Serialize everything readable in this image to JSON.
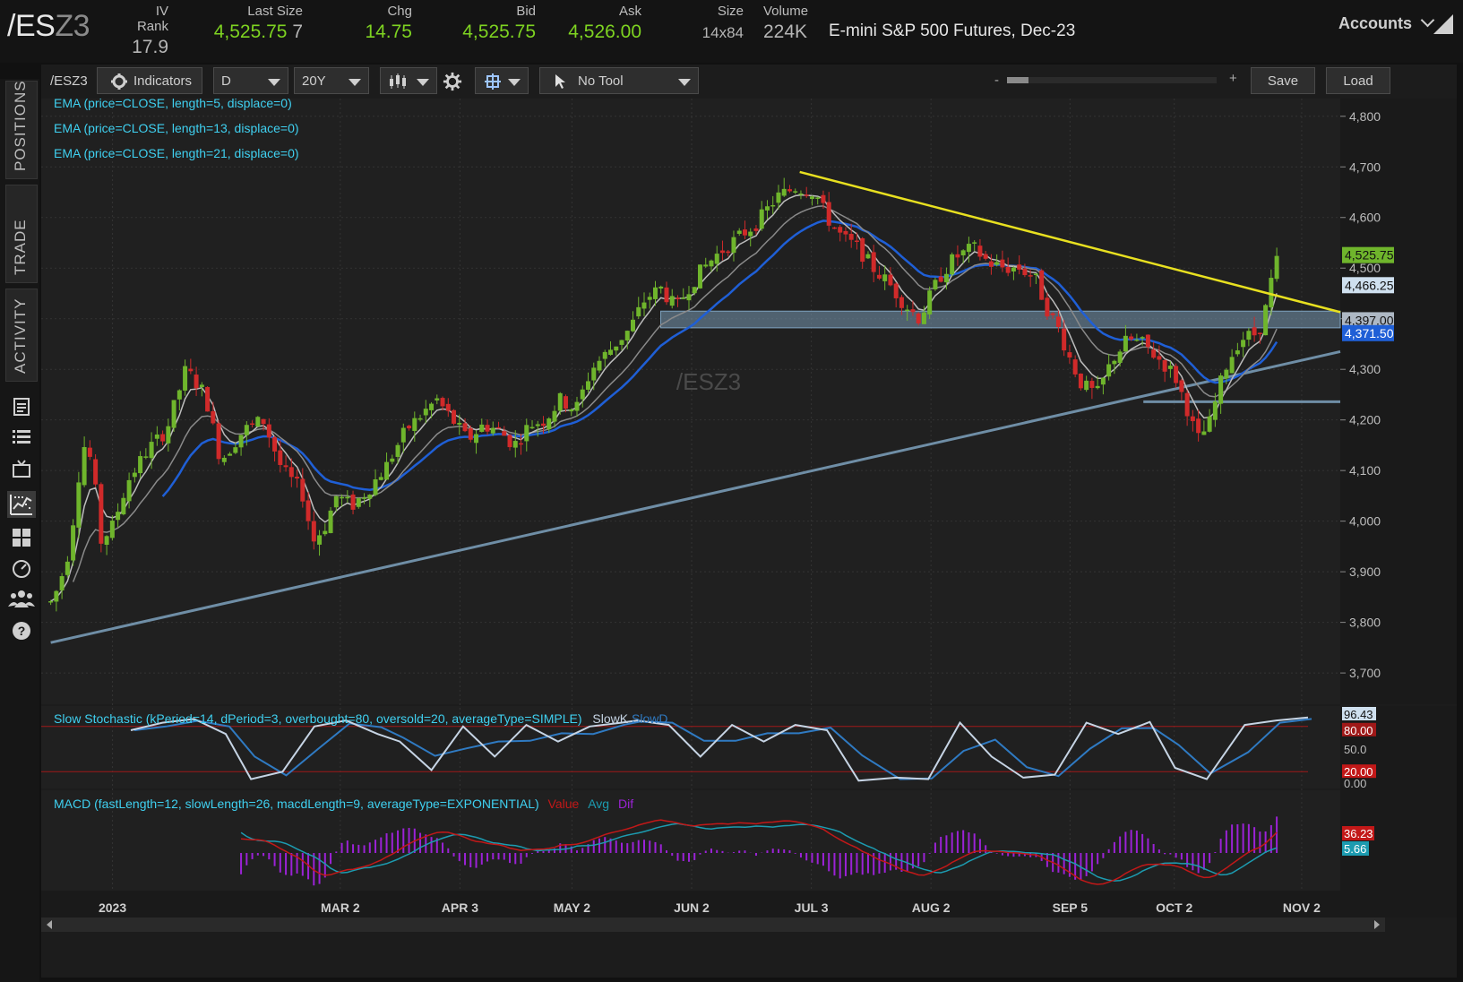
{
  "header": {
    "symbol_main": "/ES",
    "symbol_dim": "Z3",
    "quotes": [
      {
        "label": "IV Rank",
        "value": "17.9",
        "tone": "gray"
      },
      {
        "label": "Last Size",
        "value": "4,525.75",
        "extra": "7",
        "tone": "green"
      },
      {
        "label": "Chg",
        "value": "14.75",
        "tone": "green"
      },
      {
        "label": "Bid",
        "value": "4,525.75",
        "tone": "green"
      },
      {
        "label": "Ask",
        "value": "4,526.00",
        "tone": "green"
      },
      {
        "label": "Size",
        "value": "14x84",
        "tone": "gray"
      },
      {
        "label": "Volume",
        "value": "224K",
        "tone": "gray"
      }
    ],
    "description": "E-mini S&P 500 Futures, Dec-23",
    "accounts_label": "Accounts"
  },
  "left_tabs": [
    "POSITIONS",
    "TRADE",
    "ACTIVITY"
  ],
  "left_icons": [
    "document-icon",
    "list-icon",
    "tv-icon",
    "chart-icon",
    "grid-icon",
    "speedometer-icon",
    "people-icon",
    "help-icon"
  ],
  "toolbar": {
    "symbol": "/ESZ3",
    "indicators_label": "Indicators",
    "aggregation": "D",
    "timeframe": "20Y",
    "style_icon": "candles-icon",
    "settings_icon": "gear-icon",
    "drawing_icon": "drawing-set-icon",
    "tool": "No Tool",
    "zoom_minus": "-",
    "zoom_plus": "+",
    "save_label": "Save",
    "load_label": "Load"
  },
  "studies": {
    "ema5": "EMA (price=CLOSE, length=5, displace=0)",
    "ema13": "EMA (price=CLOSE, length=13, displace=0)",
    "ema21": "EMA (price=CLOSE, length=21, displace=0)",
    "stoch_label": "Slow Stochastic (kPeriod=14, dPeriod=3, overbought=80, oversold=20, averageType=SIMPLE)",
    "stoch_k": "SlowK",
    "stoch_d": "SlowD",
    "macd_label": "MACD (fastLength=12, slowLength=26, macdLength=9, averageType=EXPONENTIAL)",
    "macd_value": "Value",
    "macd_avg": "Avg",
    "macd_dif": "Dif"
  },
  "watermark": "/ESZ3",
  "colors": {
    "up": "#6fb52c",
    "down": "#d02a2a",
    "ema5": "#bcbcbc",
    "ema13": "#8a8a8a",
    "ema21": "#1f5fd6",
    "resistance": "#e8e020",
    "support": "#6f8ea6",
    "zone": "#7fa3c0",
    "stoch_k": "#c6d4e4",
    "stoch_d": "#2f7ac2",
    "macd_value": "#c21818",
    "macd_avg": "#1c9bb0",
    "macd_dif": "#9b22d6"
  },
  "chart_data": {
    "type": "candlestick",
    "instrument": "/ESZ3",
    "interval": "D",
    "y_ticks": [
      3700,
      3800,
      3900,
      4000,
      4100,
      4200,
      4300,
      4400,
      4500,
      4600,
      4700,
      4800
    ],
    "ylim": [
      3640,
      4835
    ],
    "x_labels": [
      "2023",
      "MAR 2",
      "APR 3",
      "MAY 2",
      "JUN 2",
      "JUL 3",
      "AUG 2",
      "SEP 5",
      "OCT 2",
      "NOV 2"
    ],
    "x_label_days": [
      8,
      67,
      98,
      127,
      158,
      189,
      220,
      256,
      283,
      316
    ],
    "xlim_days": [
      -10,
      326
    ],
    "path_points": [
      [
        -8,
        3840
      ],
      [
        -6,
        3870
      ],
      [
        -3,
        3950
      ],
      [
        -1,
        4080
      ],
      [
        1,
        4160
      ],
      [
        3,
        4100
      ],
      [
        5,
        3960
      ],
      [
        8,
        3990
      ],
      [
        12,
        4080
      ],
      [
        17,
        4140
      ],
      [
        22,
        4180
      ],
      [
        27,
        4300
      ],
      [
        32,
        4250
      ],
      [
        36,
        4120
      ],
      [
        42,
        4180
      ],
      [
        47,
        4200
      ],
      [
        52,
        4100
      ],
      [
        57,
        4060
      ],
      [
        60,
        3960
      ],
      [
        63,
        3990
      ],
      [
        66,
        4050
      ],
      [
        70,
        4030
      ],
      [
        74,
        4060
      ],
      [
        79,
        4110
      ],
      [
        84,
        4180
      ],
      [
        88,
        4210
      ],
      [
        92,
        4240
      ],
      [
        96,
        4200
      ],
      [
        100,
        4160
      ],
      [
        104,
        4190
      ],
      [
        108,
        4180
      ],
      [
        112,
        4150
      ],
      [
        116,
        4190
      ],
      [
        120,
        4200
      ],
      [
        124,
        4240
      ],
      [
        128,
        4220
      ],
      [
        132,
        4300
      ],
      [
        137,
        4340
      ],
      [
        142,
        4380
      ],
      [
        146,
        4440
      ],
      [
        150,
        4460
      ],
      [
        154,
        4420
      ],
      [
        157,
        4460
      ],
      [
        161,
        4500
      ],
      [
        165,
        4530
      ],
      [
        170,
        4560
      ],
      [
        175,
        4590
      ],
      [
        180,
        4640
      ],
      [
        185,
        4660
      ],
      [
        190,
        4650
      ],
      [
        193,
        4600
      ],
      [
        197,
        4560
      ],
      [
        201,
        4540
      ],
      [
        205,
        4500
      ],
      [
        209,
        4470
      ],
      [
        213,
        4430
      ],
      [
        217,
        4400
      ],
      [
        222,
        4480
      ],
      [
        226,
        4520
      ],
      [
        231,
        4540
      ],
      [
        235,
        4510
      ],
      [
        239,
        4500
      ],
      [
        243,
        4500
      ],
      [
        247,
        4480
      ],
      [
        250,
        4420
      ],
      [
        253,
        4380
      ],
      [
        256,
        4320
      ],
      [
        259,
        4270
      ],
      [
        263,
        4250
      ],
      [
        267,
        4320
      ],
      [
        271,
        4360
      ],
      [
        275,
        4350
      ],
      [
        279,
        4320
      ],
      [
        283,
        4290
      ],
      [
        286,
        4230
      ],
      [
        289,
        4160
      ],
      [
        292,
        4190
      ],
      [
        296,
        4300
      ],
      [
        300,
        4360
      ],
      [
        304,
        4370
      ],
      [
        306,
        4395
      ],
      [
        308,
        4470
      ],
      [
        310,
        4525
      ]
    ],
    "resistance_line": [
      [
        186,
        4690
      ],
      [
        326,
        4413
      ]
    ],
    "support_line": [
      [
        -8,
        3760
      ],
      [
        326,
        4335
      ]
    ],
    "zone": {
      "from_day": 150,
      "to_day": 326,
      "low": 4382,
      "high": 4415
    },
    "support_level": {
      "from_day": 275,
      "to_day": 326,
      "value": 4236
    },
    "price_labels": [
      {
        "value": "4,525.75",
        "series": "last"
      },
      {
        "value": "4,466.25",
        "series": "ema5"
      },
      {
        "value": "4,397.00",
        "series": "ema13"
      },
      {
        "value": "4,371.50",
        "series": "ema21"
      }
    ],
    "stochastic": {
      "ylim": [
        0,
        100
      ],
      "levels": [
        20,
        80
      ],
      "tick_labels": [
        "96.43",
        "80.00",
        "50.0",
        "20.00",
        "0.00"
      ],
      "k": [
        [
          0,
          75
        ],
        [
          10,
          85
        ],
        [
          20,
          90
        ],
        [
          30,
          70
        ],
        [
          38,
          10
        ],
        [
          48,
          20
        ],
        [
          58,
          80
        ],
        [
          68,
          88
        ],
        [
          78,
          70
        ],
        [
          85,
          60
        ],
        [
          95,
          22
        ],
        [
          105,
          80
        ],
        [
          115,
          40
        ],
        [
          125,
          82
        ],
        [
          135,
          60
        ],
        [
          145,
          80
        ],
        [
          155,
          85
        ],
        [
          160,
          88
        ],
        [
          170,
          82
        ],
        [
          180,
          40
        ],
        [
          190,
          82
        ],
        [
          200,
          60
        ],
        [
          210,
          82
        ],
        [
          220,
          75
        ],
        [
          230,
          8
        ],
        [
          242,
          12
        ],
        [
          252,
          10
        ],
        [
          262,
          85
        ],
        [
          272,
          40
        ],
        [
          282,
          12
        ],
        [
          292,
          16
        ],
        [
          302,
          85
        ],
        [
          312,
          70
        ],
        [
          322,
          86
        ],
        [
          330,
          25
        ],
        [
          340,
          10
        ],
        [
          352,
          82
        ],
        [
          362,
          88
        ],
        [
          372,
          92
        ]
      ],
      "last_k": "96.43"
    },
    "macd": {
      "value_label": "36.23",
      "avg_label": "5.66"
    }
  }
}
